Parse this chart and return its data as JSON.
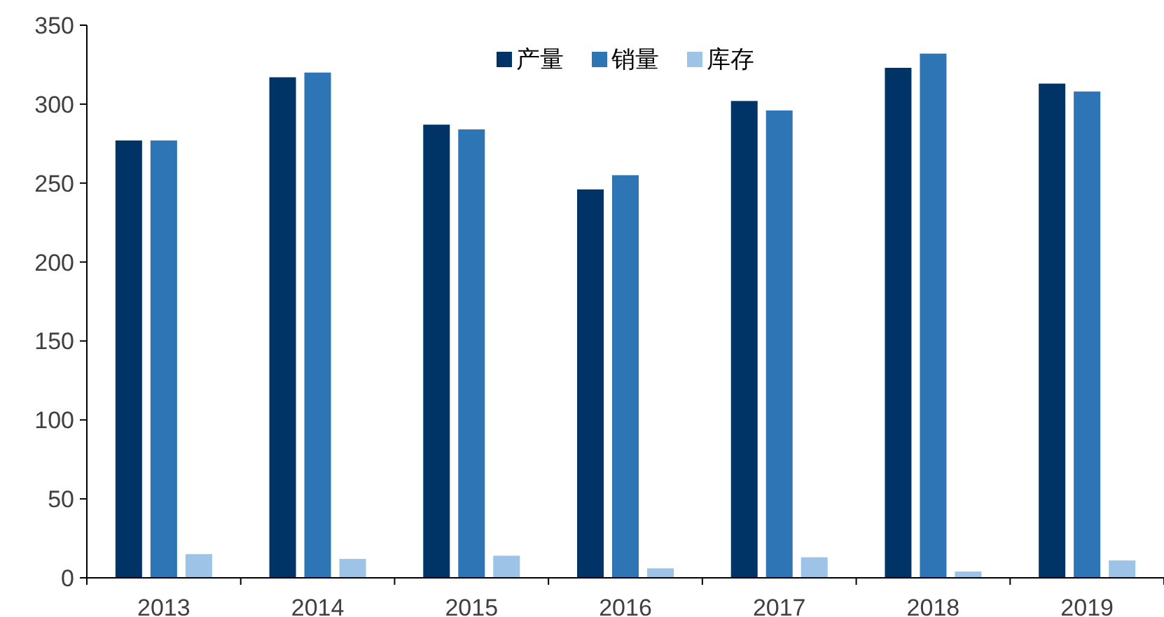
{
  "chart_data": {
    "type": "bar",
    "categories": [
      "2013",
      "2014",
      "2015",
      "2016",
      "2017",
      "2018",
      "2019"
    ],
    "series": [
      {
        "name": "产量",
        "color": "#003366",
        "values": [
          277,
          317,
          287,
          246,
          302,
          323,
          313
        ]
      },
      {
        "name": "销量",
        "color": "#2e75b6",
        "values": [
          277,
          320,
          284,
          255,
          296,
          332,
          308
        ]
      },
      {
        "name": "库存",
        "color": "#9dc3e6",
        "values": [
          15,
          12,
          14,
          6,
          13,
          4,
          11
        ]
      }
    ],
    "ylim": [
      0,
      350
    ],
    "yticks": [
      0,
      50,
      100,
      150,
      200,
      250,
      300,
      350
    ],
    "grid": false,
    "legend": "top"
  }
}
